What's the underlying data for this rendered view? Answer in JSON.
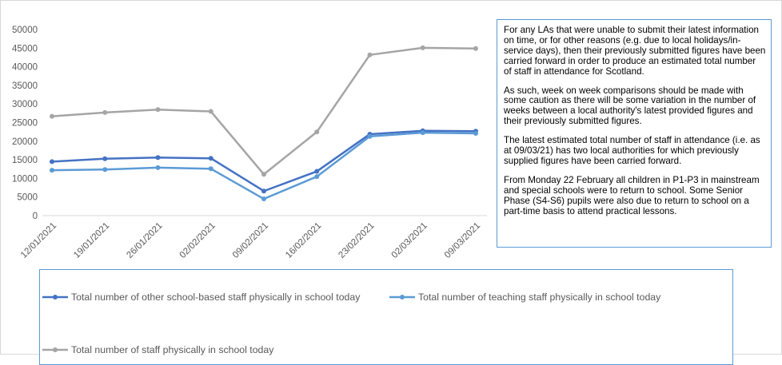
{
  "chart_data": {
    "type": "line",
    "categories": [
      "12/01/2021",
      "19/01/2021",
      "26/01/2021",
      "02/02/2021",
      "09/02/2021",
      "16/02/2021",
      "23/02/2021",
      "02/03/2021",
      "09/03/2021"
    ],
    "series": [
      {
        "name": "Total number of other school-based staff physically in school today",
        "color": "#4472c4",
        "values": [
          14500,
          15300,
          15600,
          15400,
          6600,
          11900,
          21900,
          22800,
          22700
        ]
      },
      {
        "name": "Total number of teaching staff physically in school today",
        "color": "#5b9bd5",
        "values": [
          12200,
          12400,
          12900,
          12600,
          4500,
          10500,
          21300,
          22300,
          22100
        ]
      },
      {
        "name": "Total number of staff physically in school today",
        "color": "#a5a5a5",
        "values": [
          26700,
          27700,
          28500,
          28000,
          11100,
          22500,
          43200,
          45100,
          44900
        ]
      }
    ],
    "yticks": [
      "0",
      "5000",
      "10000",
      "15000",
      "20000",
      "25000",
      "30000",
      "35000",
      "40000",
      "45000",
      "50000"
    ],
    "ylim": [
      0,
      50000
    ],
    "grid": false,
    "legend_position": "bottom",
    "title": "",
    "xlabel": "",
    "ylabel": ""
  },
  "note": {
    "paragraphs": [
      "For any LAs that were unable to submit their latest information on time, or for other reasons (e.g. due to local holidays/in-service days), then their previously submitted figures have been carried forward in order to produce an estimated total number of staff in attendance for Scotland.",
      "As such, week on week comparisons should be made with some caution as there will be some variation in the number of weeks between a local authority's latest provided figures and their previously submitted figures.",
      "The latest estimated total number of staff in attendance (i.e. as at 09/03/21) has two local authorities for which previously supplied figures have been carried forward.",
      "From Monday 22 February all children in P1-P3 in mainstream and special schools were to return to school. Some Senior Phase (S4-S6) pupils were also due to return to school on a part-time basis to attend practical lessons."
    ]
  }
}
